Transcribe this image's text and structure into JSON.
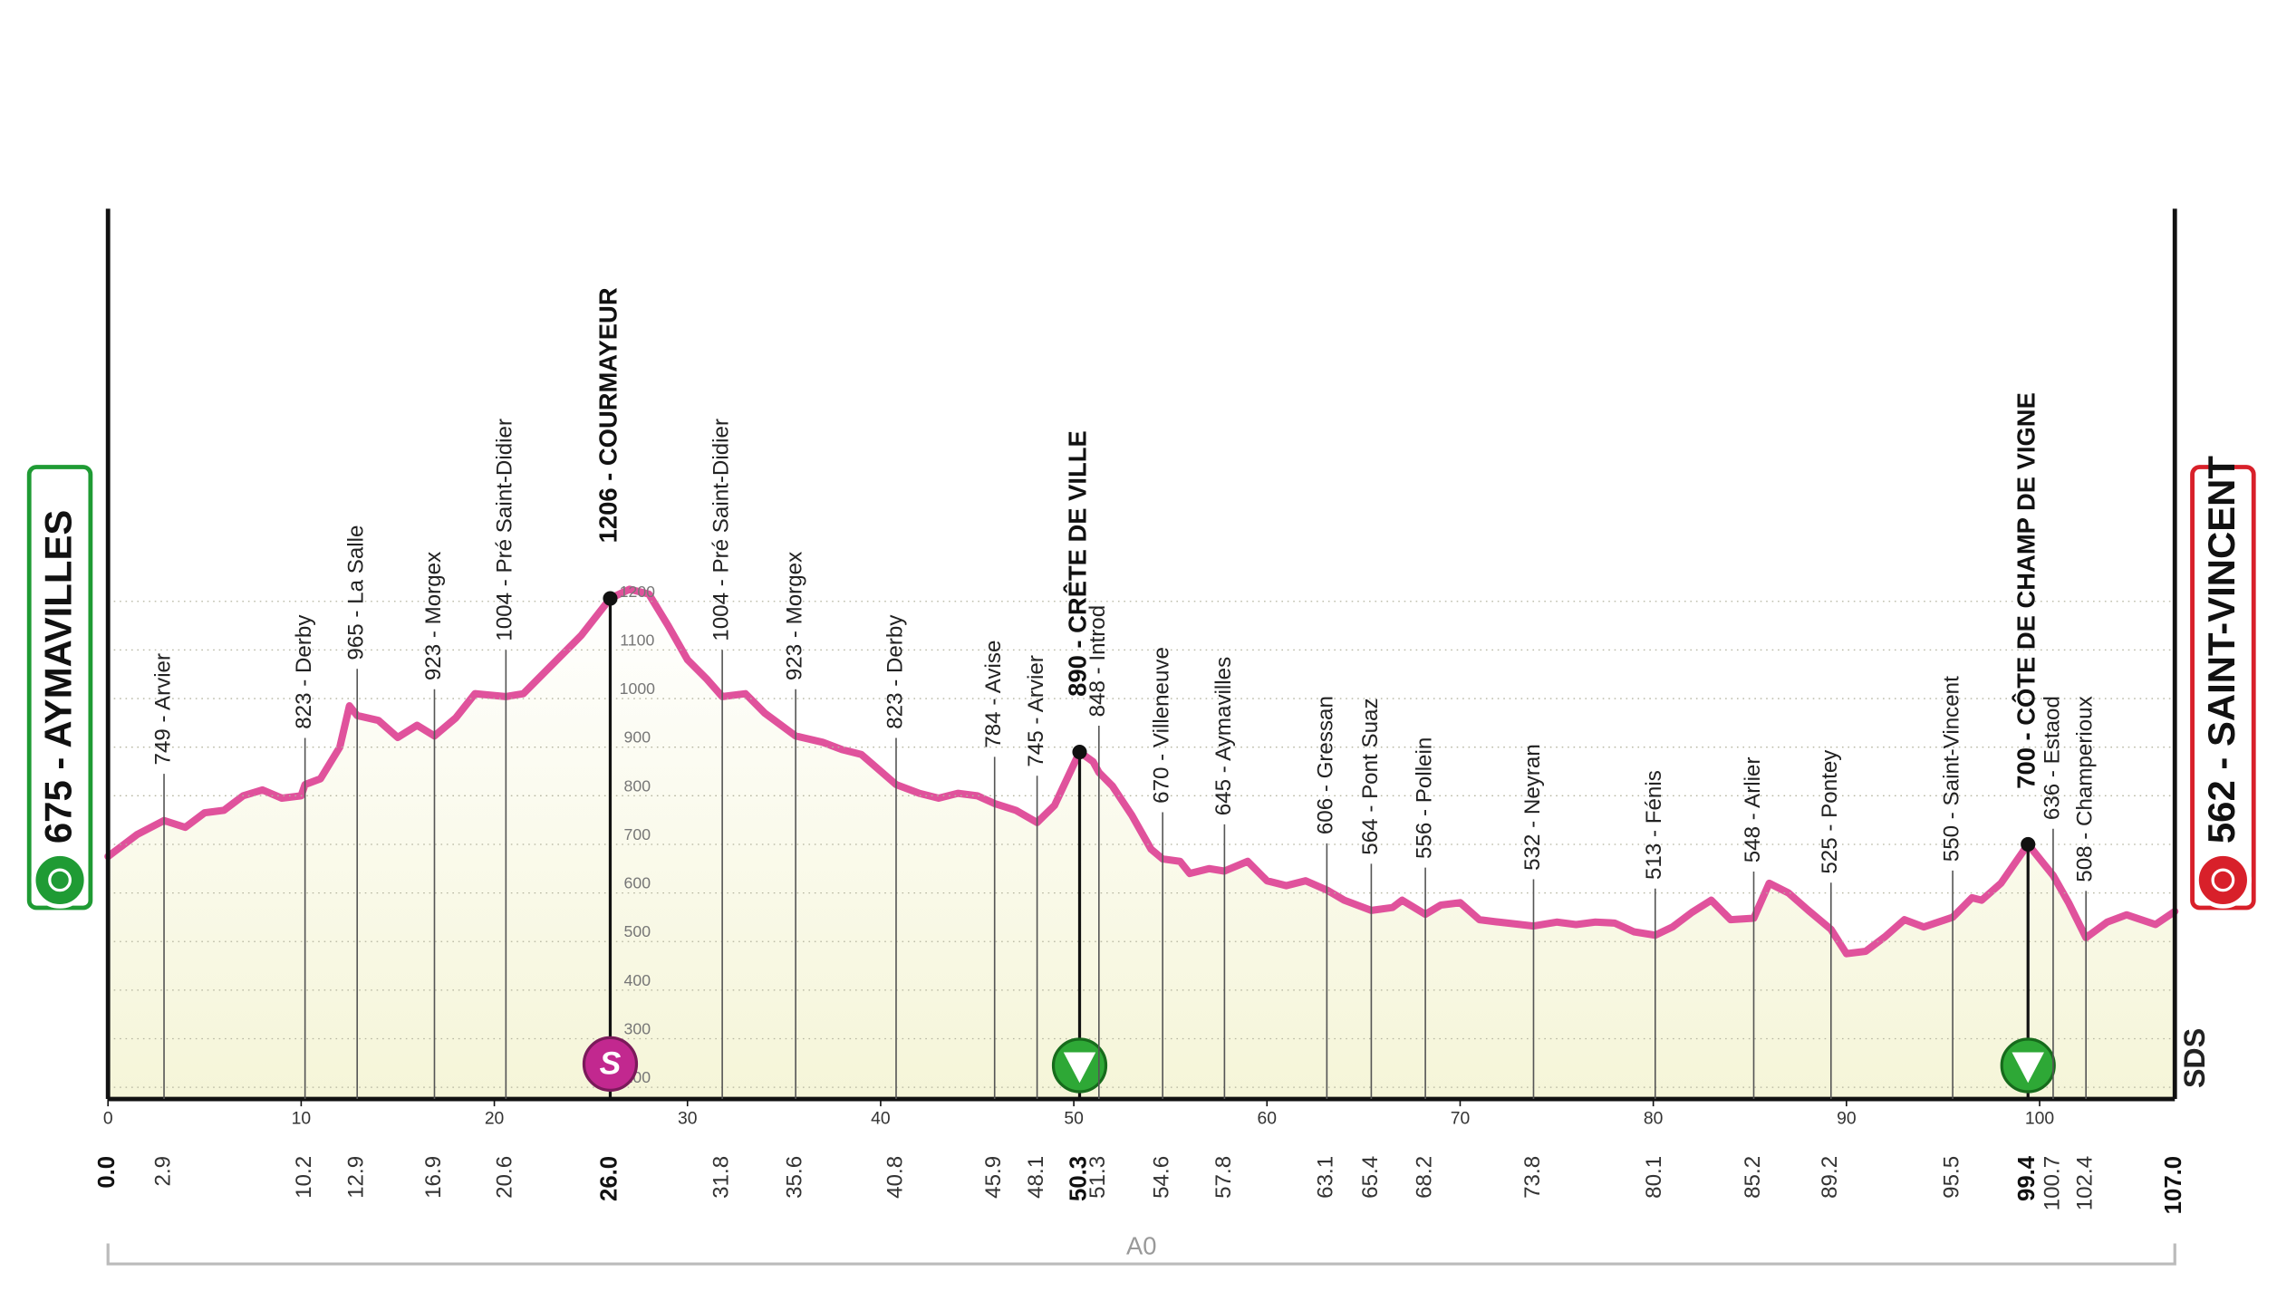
{
  "chart_data": {
    "type": "area",
    "start": {
      "km": {
        "value": 0,
        "label": "0.0"
      },
      "label": "675 - AYMAVILLES"
    },
    "finish": {
      "km": {
        "value": 107,
        "label": "107.0"
      },
      "label": "562 - SAINT-VINCENT"
    },
    "sprint_symbol": "S",
    "logo": "SDS",
    "road": "A0",
    "color": "#e0529c",
    "xlim": [
      0,
      107
    ],
    "xticks": [
      0,
      10,
      20,
      30,
      40,
      50,
      60,
      70,
      80,
      90,
      100
    ],
    "ylim": [
      176,
      2008
    ],
    "yticks": [
      200,
      300,
      400,
      500,
      600,
      700,
      800,
      900,
      1000,
      1100,
      1200
    ],
    "grid": true,
    "profile": {
      "x": [
        0,
        1.5,
        2.9,
        4,
        5,
        6,
        7,
        8,
        9,
        10,
        10.2,
        11,
        12,
        12.5,
        12.9,
        14,
        15,
        16,
        16.9,
        18,
        19,
        20.6,
        21.5,
        23,
        24.5,
        26,
        27,
        28,
        29,
        30,
        31,
        31.8,
        33,
        34,
        35.6,
        37,
        38,
        39,
        40.8,
        42,
        43,
        44,
        45,
        45.9,
        47,
        48.1,
        49,
        50.3,
        51,
        51.3,
        52,
        53,
        54,
        54.6,
        55.5,
        56,
        57,
        57.8,
        59,
        60,
        61,
        62,
        63.1,
        64,
        65.4,
        66.5,
        67,
        68.2,
        69,
        70,
        71,
        72,
        73.8,
        75,
        76,
        77,
        78,
        79,
        80.1,
        81,
        82,
        83,
        84,
        85.2,
        86,
        87,
        88,
        89.2,
        90,
        91,
        92,
        93,
        94,
        95.5,
        96.5,
        97,
        98,
        99.4,
        100.7,
        101.5,
        102.4,
        103.5,
        104.5,
        106,
        107
      ],
      "y": [
        675,
        720,
        749,
        735,
        765,
        770,
        800,
        812,
        795,
        800,
        823,
        835,
        900,
        985,
        965,
        955,
        920,
        945,
        923,
        960,
        1010,
        1004,
        1010,
        1070,
        1130,
        1206,
        1225,
        1215,
        1150,
        1080,
        1040,
        1004,
        1010,
        970,
        923,
        910,
        895,
        885,
        823,
        805,
        795,
        805,
        800,
        784,
        770,
        745,
        780,
        890,
        870,
        848,
        820,
        760,
        690,
        670,
        665,
        640,
        650,
        645,
        665,
        625,
        615,
        625,
        606,
        585,
        564,
        570,
        585,
        556,
        575,
        580,
        545,
        540,
        532,
        540,
        535,
        540,
        538,
        520,
        513,
        530,
        560,
        585,
        545,
        548,
        620,
        600,
        565,
        525,
        475,
        480,
        510,
        545,
        530,
        550,
        590,
        585,
        620,
        700,
        636,
        580,
        508,
        540,
        555,
        535,
        562
      ]
    },
    "waypoints": [
      {
        "km": 2.9,
        "label": "749 - Arvier"
      },
      {
        "km": 10.2,
        "label": "823 - Derby"
      },
      {
        "km": 12.9,
        "label": "965 - La Salle"
      },
      {
        "km": 16.9,
        "label": "923 - Morgex"
      },
      {
        "km": 20.6,
        "label": "1004 - Pré Saint-Didier"
      },
      {
        "km": {
          "value": 26,
          "label": "26.0"
        },
        "label": "1206 - COURMAYEUR",
        "bold": true,
        "icon": "sprint"
      },
      {
        "km": 31.8,
        "label": "1004 - Pré Saint-Didier"
      },
      {
        "km": 35.6,
        "label": "923 - Morgex"
      },
      {
        "km": 40.8,
        "label": "823 - Derby"
      },
      {
        "km": 45.9,
        "label": "784 - Avise"
      },
      {
        "km": 48.1,
        "label": "745 - Arvier"
      },
      {
        "km": 50.3,
        "label": "890 - CRÊTE DE VILLE",
        "bold": true,
        "icon": "kom"
      },
      {
        "km": 51.3,
        "label": "848 - Introd"
      },
      {
        "km": 54.6,
        "label": "670 - Villeneuve"
      },
      {
        "km": 57.8,
        "label": "645 - Aymavilles"
      },
      {
        "km": 63.1,
        "label": "606 - Gressan"
      },
      {
        "km": 65.4,
        "label": "564 - Pont Suaz"
      },
      {
        "km": 68.2,
        "label": "556 - Pollein"
      },
      {
        "km": 73.8,
        "label": "532 - Neyran"
      },
      {
        "km": 80.1,
        "label": "513 - Fénis"
      },
      {
        "km": 85.2,
        "label": "548 - Arlier"
      },
      {
        "km": 89.2,
        "label": "525 - Pontey"
      },
      {
        "km": 95.5,
        "label": "550 - Saint-Vincent"
      },
      {
        "km": 99.4,
        "label": "700 - CÔTE DE CHAMP DE VIGNE",
        "bold": true,
        "icon": "kom"
      },
      {
        "km": 100.7,
        "label": "636 - Estaod"
      },
      {
        "km": 102.4,
        "label": "508 - Champerioux"
      }
    ]
  }
}
